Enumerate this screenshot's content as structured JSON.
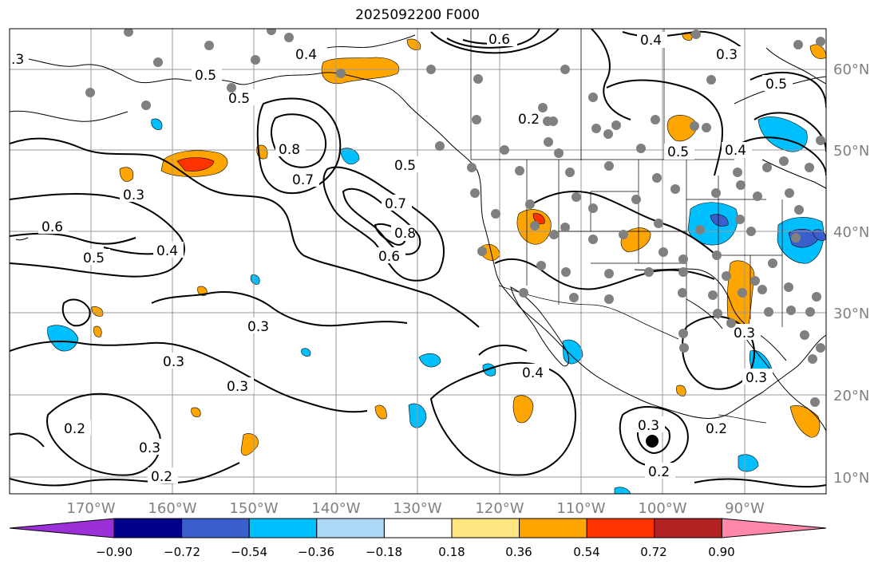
{
  "title": "2025092200 F000",
  "lon_labels": [
    "170°W",
    "160°W",
    "150°W",
    "140°W",
    "130°W",
    "120°W",
    "110°W",
    "100°W",
    "90°W"
  ],
  "lat_labels": [
    "60°N",
    "50°N",
    "40°N",
    "30°N",
    "20°N",
    "10°N"
  ],
  "colorbar": {
    "tick_labels": [
      "−0.90",
      "−0.72",
      "−0.54",
      "−0.36",
      "−0.18",
      "0.18",
      "0.36",
      "0.54",
      "0.72",
      "0.90"
    ],
    "colors": [
      "#9b30d8",
      "#00008b",
      "#3a5fcd",
      "#00bfff",
      "#add8f5",
      "#ffffff",
      "#ffe680",
      "#ffa500",
      "#ff3300",
      "#b22222",
      "#ff88aa"
    ]
  },
  "contour_labels": [
    "0.6",
    "0.5",
    "0.4",
    "0.3",
    "0.2",
    "0.8",
    "0.7",
    "0.4",
    "0.5",
    "0.3",
    "0.2"
  ],
  "map_colors": {
    "positive_shade": "#ffa500",
    "positive_core": "#ff3300",
    "negative_shade": "#00bfff",
    "negative_core": "#3a5fcd",
    "station_dot": "#808080"
  }
}
